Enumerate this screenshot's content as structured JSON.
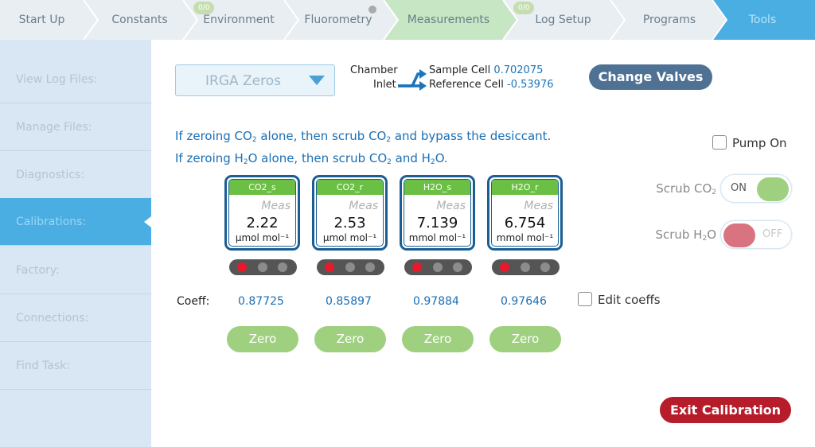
{
  "topnav": {
    "tabs": [
      {
        "label": "Start Up"
      },
      {
        "label": "Constants"
      },
      {
        "label": "Environment",
        "badge": "0/0"
      },
      {
        "label": "Fluorometry"
      },
      {
        "label": "Measurements"
      },
      {
        "label": "Log Setup",
        "badge": "0/0"
      },
      {
        "label": "Programs"
      },
      {
        "label": "Tools",
        "active": true
      }
    ],
    "colors": {
      "bar": "#e9eef2",
      "measurements": "#c7e6c4",
      "tools": "#4aaee2"
    }
  },
  "sidebar": {
    "items": [
      {
        "label": "View Log Files:"
      },
      {
        "label": "Manage Files:"
      },
      {
        "label": "Diagnostics:"
      },
      {
        "label": "Calibrations:",
        "active": true
      },
      {
        "label": "Factory:"
      },
      {
        "label": "Connections:"
      },
      {
        "label": "Find Task:"
      }
    ]
  },
  "main": {
    "dropdown": {
      "value": "IRGA Zeros"
    },
    "chamber": {
      "chamber_label": "Chamber",
      "inlet_label": "Inlet",
      "sample_label": "Sample Cell",
      "sample_value": "0.702075",
      "reference_label": "Reference Cell",
      "reference_value": "-0.53976"
    },
    "change_valves_label": "Change Valves",
    "instructions": {
      "line1_a": "If zeroing CO",
      "line1_b": " alone, then scrub CO",
      "line1_c": " and bypass the desiccant.",
      "line2_a": "If zeroing H",
      "line2_b": "O alone, then scrub CO",
      "line2_c": " and H",
      "line2_d": "O.",
      "sub2": "2"
    },
    "pump": {
      "label": "Pump On",
      "checked": false
    },
    "scrub_co2": {
      "label": "Scrub CO",
      "sub": "2",
      "state": "ON"
    },
    "scrub_h2o": {
      "label": "Scrub H",
      "suffix": "O",
      "sub": "2",
      "state": "OFF"
    },
    "meas_label": "Meas",
    "gauges": [
      {
        "name": "CO2_s",
        "value": "2.22",
        "unit": "µmol mol⁻¹",
        "leds": [
          true,
          false,
          false
        ]
      },
      {
        "name": "CO2_r",
        "value": "2.53",
        "unit": "µmol mol⁻¹",
        "leds": [
          true,
          false,
          false
        ]
      },
      {
        "name": "H2O_s",
        "value": "7.139",
        "unit": "mmol mol⁻¹",
        "leds": [
          true,
          false,
          false
        ]
      },
      {
        "name": "H2O_r",
        "value": "6.754",
        "unit": "mmol mol⁻¹",
        "leds": [
          true,
          false,
          false
        ]
      }
    ],
    "coeff_label": "Coeff:",
    "coeffs": [
      "0.87725",
      "0.85897",
      "0.97884",
      "0.97646"
    ],
    "edit_coeffs": {
      "label": "Edit coeffs",
      "checked": false
    },
    "zero_label": "Zero",
    "exit_label": "Exit Calibration"
  }
}
